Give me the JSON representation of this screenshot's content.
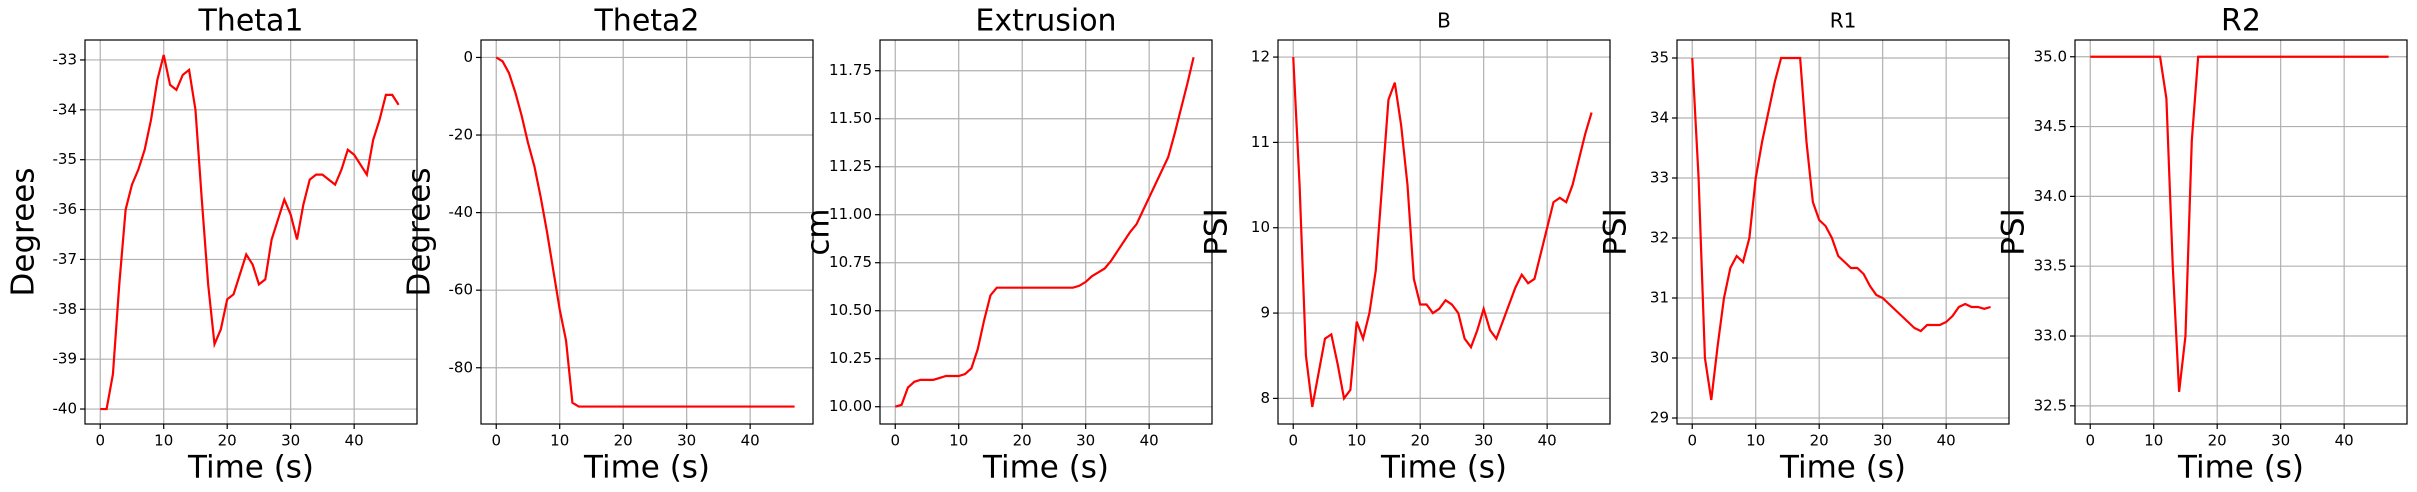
{
  "chart_data": [
    {
      "type": "line",
      "title": "Theta1",
      "xlabel": "Time (s)",
      "ylabel": "Degrees",
      "color": "#ff0000",
      "grid": true,
      "x": [
        0,
        1,
        2,
        3,
        4,
        5,
        6,
        7,
        8,
        9,
        10,
        11,
        12,
        13,
        14,
        15,
        16,
        17,
        18,
        19,
        20,
        21,
        22,
        23,
        24,
        25,
        26,
        27,
        28,
        29,
        30,
        31,
        32,
        33,
        34,
        35,
        36,
        37,
        38,
        39,
        40,
        41,
        42,
        43,
        44,
        45,
        46,
        47
      ],
      "values": [
        -40,
        -40,
        -39.3,
        -37.5,
        -36,
        -35.5,
        -35.2,
        -34.8,
        -34.2,
        -33.4,
        -32.9,
        -33.5,
        -33.6,
        -33.3,
        -33.2,
        -34,
        -35.8,
        -37.5,
        -38.7,
        -38.4,
        -37.8,
        -37.7,
        -37.3,
        -36.9,
        -37.1,
        -37.5,
        -37.4,
        -36.6,
        -36.2,
        -35.8,
        -36.1,
        -36.6,
        -35.9,
        -35.4,
        -35.3,
        -35.3,
        -35.4,
        -35.5,
        -35.2,
        -34.8,
        -34.9,
        -35.1,
        -35.3,
        -34.6,
        -34.2,
        -33.7,
        -33.7,
        -33.9
      ],
      "xlim": [
        -2.4,
        49.9
      ],
      "xticks": [
        0,
        10,
        20,
        30,
        40
      ],
      "ylim": [
        -40.3,
        -32.6
      ],
      "yticks": [
        -40,
        -39,
        -38,
        -37,
        -36,
        -35,
        -34,
        -33
      ]
    },
    {
      "type": "line",
      "title": "Theta2",
      "xlabel": "Time (s)",
      "ylabel": "Degrees",
      "color": "#ff0000",
      "grid": true,
      "x": [
        0,
        1,
        2,
        3,
        4,
        5,
        6,
        7,
        8,
        9,
        10,
        11,
        12,
        13,
        14,
        15,
        16,
        17,
        18,
        19,
        20,
        21,
        22,
        23,
        24,
        25,
        26,
        27,
        28,
        29,
        30,
        31,
        32,
        33,
        34,
        35,
        36,
        37,
        38,
        39,
        40,
        41,
        42,
        43,
        44,
        45,
        46,
        47
      ],
      "values": [
        0,
        -1,
        -4,
        -9,
        -15,
        -22,
        -28,
        -36,
        -45,
        -55,
        -65,
        -73,
        -89,
        -90,
        -90,
        -90,
        -90,
        -90,
        -90,
        -90,
        -90,
        -90,
        -90,
        -90,
        -90,
        -90,
        -90,
        -90,
        -90,
        -90,
        -90,
        -90,
        -90,
        -90,
        -90,
        -90,
        -90,
        -90,
        -90,
        -90,
        -90,
        -90,
        -90,
        -90,
        -90,
        -90,
        -90,
        -90
      ],
      "xlim": [
        -2.4,
        49.9
      ],
      "xticks": [
        0,
        10,
        20,
        30,
        40
      ],
      "ylim": [
        -94.5,
        4.5
      ],
      "yticks": [
        -80,
        -60,
        -40,
        -20,
        0
      ]
    },
    {
      "type": "line",
      "title": "Extrusion",
      "xlabel": "Time (s)",
      "ylabel": "cm",
      "color": "#ff0000",
      "grid": true,
      "x": [
        0,
        1,
        2,
        3,
        4,
        5,
        6,
        7,
        8,
        9,
        10,
        11,
        12,
        13,
        14,
        15,
        16,
        17,
        18,
        19,
        20,
        21,
        22,
        23,
        24,
        25,
        26,
        27,
        28,
        29,
        30,
        31,
        32,
        33,
        34,
        35,
        36,
        37,
        38,
        39,
        40,
        41,
        42,
        43,
        44,
        45,
        46,
        47
      ],
      "values": [
        10,
        10.01,
        10.1,
        10.13,
        10.14,
        10.14,
        10.14,
        10.15,
        10.16,
        10.16,
        10.16,
        10.17,
        10.2,
        10.3,
        10.45,
        10.58,
        10.62,
        10.62,
        10.62,
        10.62,
        10.62,
        10.62,
        10.62,
        10.62,
        10.62,
        10.62,
        10.62,
        10.62,
        10.62,
        10.63,
        10.65,
        10.68,
        10.7,
        10.72,
        10.76,
        10.81,
        10.86,
        10.91,
        10.95,
        11.02,
        11.09,
        11.16,
        11.23,
        11.3,
        11.42,
        11.55,
        11.68,
        11.82
      ],
      "xlim": [
        -2.4,
        49.9
      ],
      "xticks": [
        0,
        10,
        20,
        30,
        40
      ],
      "ylim": [
        9.91,
        11.91
      ],
      "yticks": [
        {
          "value": 10,
          "label": "10.00"
        },
        {
          "value": 10.25,
          "label": "10.25"
        },
        {
          "value": 10.5,
          "label": "10.50"
        },
        {
          "value": 10.75,
          "label": "10.75"
        },
        {
          "value": 11,
          "label": "11.00"
        },
        {
          "value": 11.25,
          "label": "11.25"
        },
        {
          "value": 11.5,
          "label": "11.50"
        },
        {
          "value": 11.75,
          "label": "11.75"
        }
      ]
    },
    {
      "type": "line",
      "title": "B",
      "xlabel": "Time (s)",
      "ylabel": "PSI",
      "color": "#ff0000",
      "grid": true,
      "x": [
        0,
        1,
        2,
        3,
        4,
        5,
        6,
        7,
        8,
        9,
        10,
        11,
        12,
        13,
        14,
        15,
        16,
        17,
        18,
        19,
        20,
        21,
        22,
        23,
        24,
        25,
        26,
        27,
        28,
        29,
        30,
        31,
        32,
        33,
        34,
        35,
        36,
        37,
        38,
        39,
        40,
        41,
        42,
        43,
        44,
        45,
        46,
        47
      ],
      "values": [
        12,
        10.5,
        8.5,
        7.9,
        8.3,
        8.7,
        8.75,
        8.4,
        8,
        8.1,
        8.9,
        8.7,
        9,
        9.5,
        10.5,
        11.5,
        11.7,
        11.2,
        10.5,
        9.4,
        9.1,
        9.1,
        9,
        9.05,
        9.15,
        9.1,
        9,
        8.7,
        8.6,
        8.8,
        9.05,
        8.8,
        8.7,
        8.9,
        9.1,
        9.3,
        9.45,
        9.35,
        9.4,
        9.7,
        10,
        10.3,
        10.35,
        10.3,
        10.5,
        10.8,
        11.1,
        11.35
      ],
      "xlim": [
        -2.4,
        49.9
      ],
      "xticks": [
        0,
        10,
        20,
        30,
        40
      ],
      "ylim": [
        7.7,
        12.2
      ],
      "yticks": [
        8,
        9,
        10,
        11,
        12
      ]
    },
    {
      "type": "line",
      "title": "R1",
      "xlabel": "Time (s)",
      "ylabel": "PSI",
      "color": "#ff0000",
      "grid": true,
      "x": [
        0,
        1,
        2,
        3,
        4,
        5,
        6,
        7,
        8,
        9,
        10,
        11,
        12,
        13,
        14,
        15,
        16,
        17,
        18,
        19,
        20,
        21,
        22,
        23,
        24,
        25,
        26,
        27,
        28,
        29,
        30,
        31,
        32,
        33,
        34,
        35,
        36,
        37,
        38,
        39,
        40,
        41,
        42,
        43,
        44,
        45,
        46,
        47
      ],
      "values": [
        35,
        33,
        30,
        29.3,
        30.2,
        31,
        31.5,
        31.7,
        31.6,
        32,
        33,
        33.6,
        34.1,
        34.6,
        35,
        35,
        35,
        35,
        33.6,
        32.6,
        32.3,
        32.2,
        32,
        31.7,
        31.6,
        31.5,
        31.5,
        31.4,
        31.2,
        31.05,
        31,
        30.9,
        30.8,
        30.7,
        30.6,
        30.5,
        30.45,
        30.55,
        30.55,
        30.55,
        30.6,
        30.7,
        30.85,
        30.9,
        30.85,
        30.85,
        30.82,
        30.85
      ],
      "xlim": [
        -2.4,
        49.9
      ],
      "xticks": [
        0,
        10,
        20,
        30,
        40
      ],
      "ylim": [
        28.9,
        35.3
      ],
      "yticks": [
        29,
        30,
        31,
        32,
        33,
        34,
        35
      ]
    },
    {
      "type": "line",
      "title": "R2",
      "xlabel": "Time (s)",
      "ylabel": "PSI",
      "color": "#ff0000",
      "grid": true,
      "x": [
        0,
        1,
        2,
        3,
        4,
        5,
        6,
        7,
        8,
        9,
        10,
        11,
        12,
        13,
        14,
        15,
        16,
        17,
        18,
        19,
        20,
        21,
        22,
        23,
        24,
        25,
        26,
        27,
        28,
        29,
        30,
        31,
        32,
        33,
        34,
        35,
        36,
        37,
        38,
        39,
        40,
        41,
        42,
        43,
        44,
        45,
        46,
        47
      ],
      "values": [
        35,
        35,
        35,
        35,
        35,
        35,
        35,
        35,
        35,
        35,
        35,
        35,
        34.7,
        33.5,
        32.6,
        33,
        34.4,
        35,
        35,
        35,
        35,
        35,
        35,
        35,
        35,
        35,
        35,
        35,
        35,
        35,
        35,
        35,
        35,
        35,
        35,
        35,
        35,
        35,
        35,
        35,
        35,
        35,
        35,
        35,
        35,
        35,
        35,
        35
      ],
      "xlim": [
        -2.4,
        49.9
      ],
      "xticks": [
        0,
        10,
        20,
        30,
        40
      ],
      "ylim": [
        32.37,
        35.12
      ],
      "yticks": [
        32.5,
        {
          "value": 33,
          "label": "33.0"
        },
        33.5,
        {
          "value": 34,
          "label": "34.0"
        },
        34.5,
        {
          "value": 35,
          "label": "35.0"
        }
      ]
    }
  ]
}
